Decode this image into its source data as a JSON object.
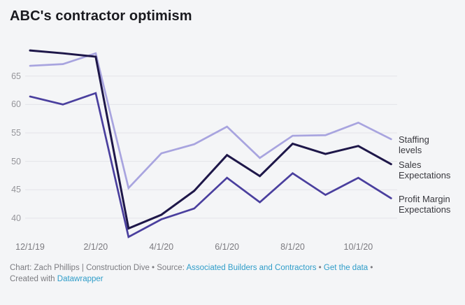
{
  "title": "ABC's contractor optimism",
  "chart_data": {
    "type": "line",
    "x": [
      "12/1/19",
      "1/1/20",
      "2/1/20",
      "3/1/20",
      "4/1/20",
      "5/1/20",
      "6/1/20",
      "7/1/20",
      "8/1/20",
      "9/1/20",
      "10/1/20",
      "11/1/20"
    ],
    "x_tick_labels": [
      "12/1/19",
      "2/1/20",
      "4/1/20",
      "6/1/20",
      "8/1/20",
      "10/1/20"
    ],
    "y_ticks": [
      65,
      60,
      55,
      50,
      45,
      40
    ],
    "ylim": [
      36,
      70.5
    ],
    "grid": "horizontal-only",
    "legend_position": "direct-labels-right",
    "series": [
      {
        "name": "Staffing levels",
        "color": "#a8a4df",
        "values": [
          66.8,
          67.1,
          69.0,
          45.3,
          51.4,
          53.0,
          56.1,
          50.6,
          54.5,
          54.6,
          56.8,
          53.9
        ]
      },
      {
        "name": "Sales Expectations",
        "color": "#1e1749",
        "values": [
          69.5,
          69.0,
          68.4,
          38.2,
          40.6,
          44.8,
          51.1,
          47.4,
          53.1,
          51.3,
          52.7,
          49.5
        ]
      },
      {
        "name": "Profit Margin Expectations",
        "color": "#4a3f9e",
        "values": [
          61.4,
          60.0,
          62.0,
          36.7,
          39.8,
          41.7,
          47.1,
          42.8,
          47.9,
          44.1,
          47.1,
          43.5
        ]
      }
    ]
  },
  "footer": {
    "credit_prefix": "Chart: Zach Phillips | Construction Dive • Source: ",
    "source_link": "Associated Builders and Contractors",
    "separator1": " • ",
    "get_data_link": "Get the data",
    "separator2": " •",
    "created_with_prefix": "Created with ",
    "tool_link": "Datawrapper"
  },
  "colors": {
    "background": "#f4f5f7",
    "gridline": "#e3e3e8",
    "axis_label": "#8d8d92",
    "legend_text": "#39393f",
    "footer_text": "#7c7c81",
    "link": "#2f9dc9",
    "title": "#1a1a1f"
  }
}
